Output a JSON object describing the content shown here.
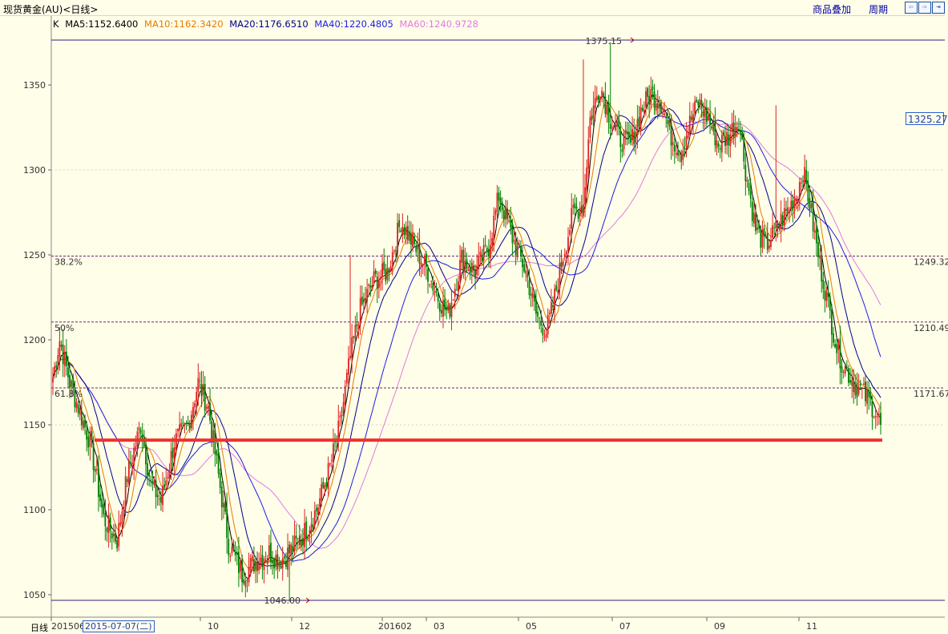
{
  "header": {
    "title": "现货黄金(AU)<日线>",
    "overlay_label": "商品叠加",
    "period_label": "周期",
    "nav_icons": [
      "nav-left-icon",
      "nav-right-icon",
      "nav-end-icon"
    ]
  },
  "legend": {
    "k": "K",
    "ma5": "MA5:1152.6400",
    "ma10": "MA10:1162.3420",
    "ma20": "MA20:1176.6510",
    "ma40": "MA40:1220.4805",
    "ma60": "MA60:1240.9728"
  },
  "current_price": "1325.27",
  "footer": {
    "period": "日线",
    "first_tick": "201506",
    "selected_date": "2015-07-07(二)"
  },
  "chart_data": {
    "type": "candlestick",
    "colors": {
      "up": "#E02020",
      "down": "#008000",
      "ma5": "#000000",
      "ma10": "#E87A00",
      "ma20": "#00008B",
      "ma40": "#1E1EE6",
      "ma60": "#E07AE0",
      "support": "#F03030",
      "grid": "#6a2a6a"
    },
    "ylim": [
      1040,
      1380
    ],
    "y_ticks": [
      1050,
      1100,
      1150,
      1200,
      1250,
      1300,
      1350
    ],
    "x_ticks": [
      "201506",
      "10",
      "12",
      "201602",
      "03",
      "05",
      "07",
      "09",
      "11"
    ],
    "fib_levels": [
      {
        "label": "38.2%",
        "value": 1249.32,
        "value_label": "1249.32"
      },
      {
        "label": "50%",
        "value": 1210.49,
        "value_label": "1210.49"
      },
      {
        "label": "61.8%",
        "value": 1171.67,
        "value_label": "1171.67"
      }
    ],
    "high": {
      "value": 1375.15,
      "label": "1375.15"
    },
    "low": {
      "value": 1046.0,
      "label": "1046.00"
    },
    "support_level": 1141,
    "price_anchors": [
      [
        0,
        1178
      ],
      [
        4,
        1200
      ],
      [
        10,
        1175
      ],
      [
        22,
        1140
      ],
      [
        30,
        1095
      ],
      [
        38,
        1082
      ],
      [
        44,
        1120
      ],
      [
        52,
        1150
      ],
      [
        58,
        1115
      ],
      [
        64,
        1105
      ],
      [
        72,
        1140
      ],
      [
        80,
        1150
      ],
      [
        86,
        1175
      ],
      [
        92,
        1160
      ],
      [
        98,
        1120
      ],
      [
        104,
        1080
      ],
      [
        112,
        1062
      ],
      [
        120,
        1070
      ],
      [
        128,
        1075
      ],
      [
        134,
        1070
      ],
      [
        140,
        1075
      ],
      [
        148,
        1085
      ],
      [
        156,
        1100
      ],
      [
        164,
        1125
      ],
      [
        170,
        1150
      ],
      [
        176,
        1190
      ],
      [
        182,
        1218
      ],
      [
        190,
        1235
      ],
      [
        198,
        1240
      ],
      [
        206,
        1270
      ],
      [
        214,
        1255
      ],
      [
        222,
        1240
      ],
      [
        228,
        1225
      ],
      [
        234,
        1215
      ],
      [
        242,
        1248
      ],
      [
        250,
        1240
      ],
      [
        258,
        1255
      ],
      [
        264,
        1285
      ],
      [
        272,
        1260
      ],
      [
        280,
        1240
      ],
      [
        286,
        1215
      ],
      [
        292,
        1205
      ],
      [
        296,
        1220
      ],
      [
        302,
        1250
      ],
      [
        308,
        1275
      ],
      [
        314,
        1280
      ],
      [
        318,
        1330
      ],
      [
        324,
        1350
      ],
      [
        330,
        1330
      ],
      [
        336,
        1318
      ],
      [
        342,
        1315
      ],
      [
        348,
        1335
      ],
      [
        354,
        1345
      ],
      [
        360,
        1340
      ],
      [
        366,
        1320
      ],
      [
        372,
        1310
      ],
      [
        376,
        1325
      ],
      [
        382,
        1340
      ],
      [
        388,
        1330
      ],
      [
        394,
        1315
      ],
      [
        400,
        1320
      ],
      [
        406,
        1330
      ],
      [
        410,
        1300
      ],
      [
        416,
        1265
      ],
      [
        422,
        1255
      ],
      [
        428,
        1265
      ],
      [
        434,
        1275
      ],
      [
        440,
        1285
      ],
      [
        444,
        1300
      ],
      [
        448,
        1280
      ],
      [
        452,
        1255
      ],
      [
        456,
        1235
      ],
      [
        460,
        1215
      ],
      [
        464,
        1195
      ],
      [
        468,
        1185
      ],
      [
        474,
        1175
      ],
      [
        480,
        1168
      ],
      [
        486,
        1160
      ],
      [
        490,
        1150
      ]
    ],
    "spikes": [
      {
        "i": 314,
        "high": 1365
      },
      {
        "i": 330,
        "high": 1375.15
      },
      {
        "i": 428,
        "high": 1338
      },
      {
        "i": 176,
        "high": 1250
      }
    ],
    "ma_end_values": {
      "ma5": 1152.64,
      "ma10": 1162.342,
      "ma20": 1176.651,
      "ma40": 1220.4805,
      "ma60": 1240.9728
    }
  }
}
